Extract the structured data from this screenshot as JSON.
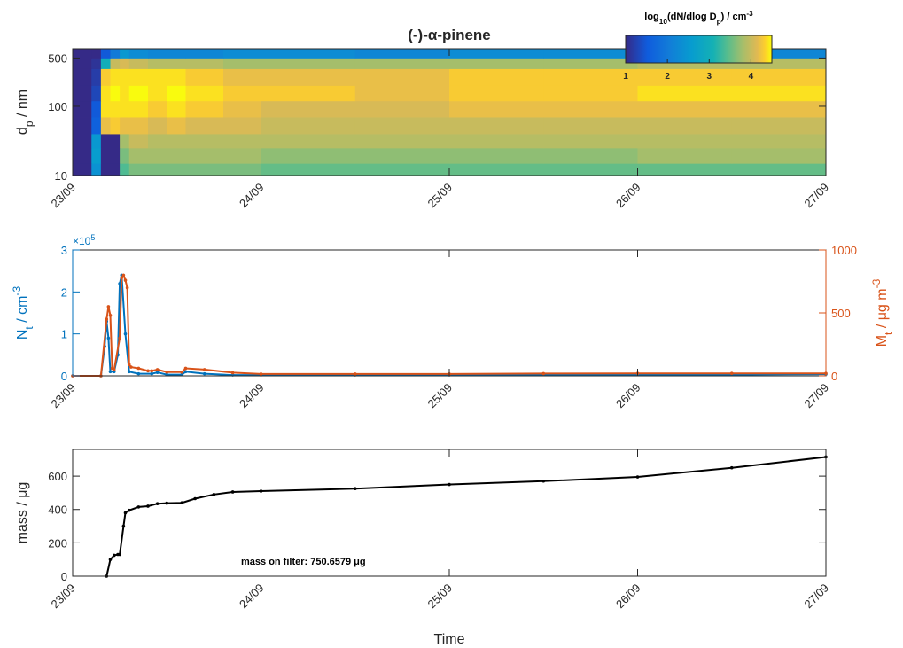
{
  "chart_data": [
    {
      "type": "heatmap",
      "title": "(-)-α-pinene",
      "ylabel": [
        {
          "text": "d"
        },
        {
          "text": "p",
          "pos": "sub"
        },
        {
          "text": " / nm"
        }
      ],
      "xlim": [
        0,
        4
      ],
      "xticks": [
        {
          "value": 0,
          "label": "23/09"
        },
        {
          "value": 1,
          "label": "24/09"
        },
        {
          "value": 2,
          "label": "25/09"
        },
        {
          "value": 3,
          "label": "26/09"
        },
        {
          "value": 4,
          "label": "27/09"
        }
      ],
      "ylim": [
        10,
        680
      ],
      "ylog": true,
      "yticks": [
        10,
        100,
        500
      ],
      "x_edges": [
        0,
        0.05,
        0.1,
        0.15,
        0.2,
        0.25,
        0.3,
        0.4,
        0.5,
        0.6,
        0.8,
        1,
        1.5,
        2,
        2.5,
        3,
        3.5,
        4
      ],
      "y_edges": [
        10,
        15,
        25,
        40,
        70,
        120,
        200,
        350,
        500,
        680
      ],
      "z": [
        [
          1,
          1,
          2.4,
          1,
          1,
          3.4,
          3.6,
          3.6,
          3.6,
          3.6,
          3.6,
          3.5,
          3.5,
          3.5,
          3.5,
          3.5,
          3.5
        ],
        [
          1,
          1,
          2.6,
          1,
          1,
          3.6,
          3.8,
          3.8,
          3.8,
          3.8,
          3.8,
          3.7,
          3.7,
          3.7,
          3.7,
          3.8,
          3.8
        ],
        [
          1,
          1,
          2.5,
          1,
          1,
          3.8,
          4.0,
          3.9,
          3.9,
          3.9,
          3.9,
          3.9,
          3.9,
          3.9,
          3.9,
          3.9,
          3.9
        ],
        [
          1,
          1,
          1.6,
          4.2,
          4.3,
          4.2,
          4.2,
          4.1,
          4.2,
          4.1,
          4.1,
          4.0,
          4.0,
          4.0,
          4.0,
          4.0,
          4.0
        ],
        [
          1,
          1,
          1.5,
          4.4,
          4.4,
          4.4,
          4.4,
          4.3,
          4.4,
          4.3,
          4.2,
          4.1,
          4.1,
          4.2,
          4.2,
          4.2,
          4.2
        ],
        [
          1,
          1,
          1.3,
          4.4,
          4.5,
          4.4,
          4.5,
          4.4,
          4.5,
          4.4,
          4.3,
          4.3,
          4.2,
          4.3,
          4.3,
          4.4,
          4.4
        ],
        [
          1,
          1,
          1.2,
          4.3,
          4.4,
          4.4,
          4.4,
          4.4,
          4.4,
          4.3,
          4.2,
          4.2,
          4.2,
          4.3,
          4.3,
          4.3,
          4.3
        ],
        [
          1,
          1,
          1.1,
          3.0,
          4.0,
          4.1,
          4.0,
          3.9,
          3.9,
          3.9,
          3.8,
          3.8,
          3.8,
          3.8,
          3.8,
          3.9,
          3.9
        ],
        [
          1,
          1,
          1,
          1.5,
          2.0,
          2.5,
          2.3,
          2.2,
          2.2,
          2.2,
          2.3,
          2.3,
          2.2,
          2.3,
          2.3,
          2.2,
          2.2
        ]
      ],
      "colorbar_label": [
        {
          "text": "log"
        },
        {
          "text": "10",
          "pos": "sub"
        },
        {
          "text": "(dN/dlog D"
        },
        {
          "text": "p",
          "pos": "sub"
        },
        {
          "text": ") / cm"
        },
        {
          "text": "-3",
          "pos": "sup"
        }
      ],
      "clim": [
        1,
        4.5
      ],
      "cticks": [
        1,
        2,
        3,
        4
      ]
    },
    {
      "type": "line",
      "ylabel": [
        {
          "text": "N"
        },
        {
          "text": "t",
          "pos": "sub"
        },
        {
          "text": " / cm"
        },
        {
          "text": "-3",
          "pos": "sup"
        }
      ],
      "y2label": [
        {
          "text": "M"
        },
        {
          "text": "t",
          "pos": "sub"
        },
        {
          "text": " / μg m"
        },
        {
          "text": "-3",
          "pos": "sup"
        }
      ],
      "y_multiplier": [
        {
          "text": "×10"
        },
        {
          "text": "5",
          "pos": "sup"
        }
      ],
      "xlim": [
        0,
        4
      ],
      "xticks": [
        {
          "value": 0,
          "label": "23/09"
        },
        {
          "value": 1,
          "label": "24/09"
        },
        {
          "value": 2,
          "label": "25/09"
        },
        {
          "value": 3,
          "label": "26/09"
        },
        {
          "value": 4,
          "label": "27/09"
        }
      ],
      "ylim": [
        0,
        3
      ],
      "yticks": [
        0,
        1,
        2,
        3
      ],
      "y_color": "#0072BD",
      "y2lim": [
        0,
        1000
      ],
      "y2ticks": [
        0,
        500,
        1000
      ],
      "y2_color": "#D95319",
      "series": [
        {
          "color": "#0072BD",
          "x": [
            0,
            0.15,
            0.17,
            0.18,
            0.19,
            0.2,
            0.22,
            0.24,
            0.25,
            0.26,
            0.28,
            0.3,
            0.35,
            0.42,
            0.45,
            0.5,
            0.58,
            0.6,
            0.7,
            0.85,
            1,
            1.5,
            2,
            2.5,
            3,
            3.5,
            4
          ],
          "values": [
            0,
            0,
            0.7,
            1.3,
            0.9,
            0.1,
            0.1,
            0.5,
            2.2,
            2.4,
            1.0,
            0.1,
            0.05,
            0.05,
            0.08,
            0.03,
            0.03,
            0.1,
            0.05,
            0.02,
            0.02,
            0.02,
            0.02,
            0.03,
            0.03,
            0.03,
            0.04
          ]
        },
        {
          "color": "#D95319",
          "axis": "y2",
          "x": [
            0,
            0.15,
            0.18,
            0.19,
            0.2,
            0.21,
            0.22,
            0.25,
            0.26,
            0.27,
            0.28,
            0.29,
            0.3,
            0.31,
            0.35,
            0.4,
            0.42,
            0.45,
            0.5,
            0.58,
            0.6,
            0.7,
            0.85,
            1,
            1.5,
            2,
            2.5,
            3,
            3.5,
            4
          ],
          "values": [
            0,
            0,
            450,
            550,
            480,
            60,
            50,
            300,
            780,
            800,
            760,
            700,
            90,
            70,
            60,
            40,
            40,
            50,
            30,
            30,
            60,
            50,
            25,
            15,
            15,
            15,
            18,
            20,
            20,
            20
          ]
        }
      ]
    },
    {
      "type": "line",
      "ylabel": [
        {
          "text": "mass / μg"
        }
      ],
      "xlabel": "Time",
      "annotation": "mass on filter: 750.6579 μg",
      "xlim": [
        0,
        4
      ],
      "xticks": [
        {
          "value": 0,
          "label": "23/09"
        },
        {
          "value": 1,
          "label": "24/09"
        },
        {
          "value": 2,
          "label": "25/09"
        },
        {
          "value": 3,
          "label": "26/09"
        },
        {
          "value": 4,
          "label": "27/09"
        }
      ],
      "ylim": [
        0,
        760
      ],
      "yticks": [
        0,
        200,
        400,
        600
      ],
      "series": [
        {
          "color": "#000000",
          "x": [
            0.18,
            0.2,
            0.22,
            0.24,
            0.25,
            0.27,
            0.28,
            0.3,
            0.35,
            0.4,
            0.45,
            0.5,
            0.58,
            0.65,
            0.75,
            0.85,
            1,
            1.5,
            2,
            2.5,
            3,
            3.5,
            4
          ],
          "values": [
            0,
            100,
            125,
            130,
            130,
            300,
            380,
            395,
            415,
            420,
            435,
            438,
            440,
            465,
            490,
            505,
            510,
            525,
            550,
            570,
            595,
            650,
            715
          ]
        }
      ]
    }
  ]
}
